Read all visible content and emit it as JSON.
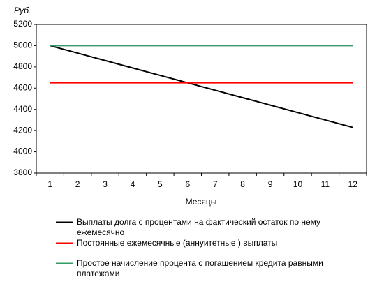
{
  "chart_data": {
    "type": "line",
    "y_label": "Руб.",
    "x_label": "Месяцы",
    "categories": [
      "1",
      "2",
      "3",
      "4",
      "5",
      "6",
      "7",
      "8",
      "9",
      "10",
      "11",
      "12"
    ],
    "series": [
      {
        "name": "Выплаты долга с процентами на фактический остаток по нему ежемесячно",
        "color": "#000000",
        "values": [
          5000,
          4930,
          4860,
          4790,
          4720,
          4650,
          4580,
          4510,
          4440,
          4370,
          4300,
          4230
        ]
      },
      {
        "name": "Постоянные ежемесячные (аннуитетные ) выплаты",
        "color": "#ff0000",
        "values": [
          4650,
          4650,
          4650,
          4650,
          4650,
          4650,
          4650,
          4650,
          4650,
          4650,
          4650,
          4650
        ]
      },
      {
        "name": "Простое начисление процента с погашением кредита равными платежами",
        "color": "#339966",
        "values": [
          5000,
          5000,
          5000,
          5000,
          5000,
          5000,
          5000,
          5000,
          5000,
          5000,
          5000,
          5000
        ]
      }
    ],
    "ylim": [
      3800,
      5200
    ],
    "yticks": [
      3800,
      4000,
      4200,
      4400,
      4600,
      4800,
      5000,
      5200
    ],
    "grid": false,
    "legend": "bottom"
  }
}
